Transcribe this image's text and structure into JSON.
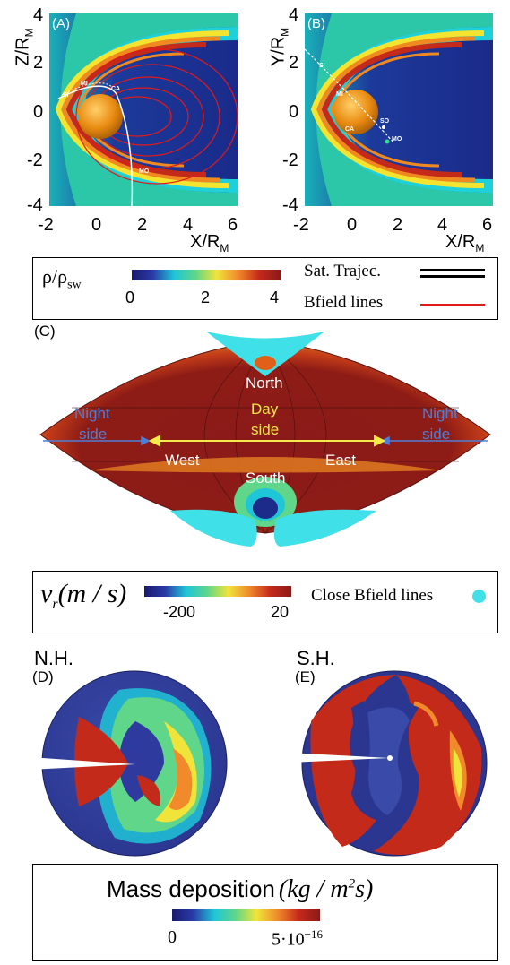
{
  "panelA": {
    "label": "(A)",
    "ylabel_main": "Z/R",
    "ylabel_sub": "M",
    "xlabel_main": "X/R",
    "xlabel_sub": "M",
    "yticks": [
      "4",
      "2",
      "0",
      "-2",
      "-4"
    ],
    "xticks": [
      "-2",
      "0",
      "2",
      "4",
      "6"
    ],
    "points": [
      "MI",
      "CA",
      "SI",
      "MO"
    ]
  },
  "panelB": {
    "label": "(B)",
    "ylabel_main": "Y/R",
    "ylabel_sub": "M",
    "xlabel_main": "X/R",
    "xlabel_sub": "M",
    "yticks": [
      "4",
      "2",
      "0",
      "-2",
      "-4"
    ],
    "xticks": [
      "-2",
      "0",
      "2",
      "4",
      "6"
    ],
    "points": [
      "SI",
      "MI",
      "CA",
      "SO",
      "MO"
    ]
  },
  "legend1": {
    "rho": "ρ/ρ",
    "rho_sub": "sw",
    "ticks": [
      "0",
      "2",
      "4"
    ],
    "sat": "Sat. Trajec.",
    "bfield": "Bfield lines"
  },
  "panelC": {
    "label": "(C)",
    "north": "North",
    "south": "South",
    "day": "Day",
    "day2": "side",
    "night_left": "Night",
    "night_left2": "side",
    "night_right": "Night",
    "night_right2": "side",
    "west": "West",
    "east": "East"
  },
  "legend2": {
    "vr": "v",
    "vr_sub": "r",
    "vr_units": "(m / s)",
    "ticks": [
      "-200",
      "20"
    ],
    "close": "Close Bfield lines"
  },
  "panelD": {
    "hemi": "N.H.",
    "label": "(D)"
  },
  "panelE": {
    "hemi": "S.H.",
    "label": "(E)"
  },
  "legend3": {
    "title": "Mass deposition",
    "units": "(kg / m",
    "units_sup": "2",
    "units_end": "s)",
    "tick_low": "0",
    "tick_high": "5·10",
    "tick_high_exp": "−16"
  },
  "colors": {
    "colormap": [
      "#1a1a6e",
      "#2b3ba8",
      "#1ec6d8",
      "#5fd68a",
      "#f0e43a",
      "#f08a2a",
      "#c42a1a",
      "#8a1a1a"
    ],
    "cyan_marker": "#3fe0e8",
    "bfield_red": "#e01a1a"
  }
}
